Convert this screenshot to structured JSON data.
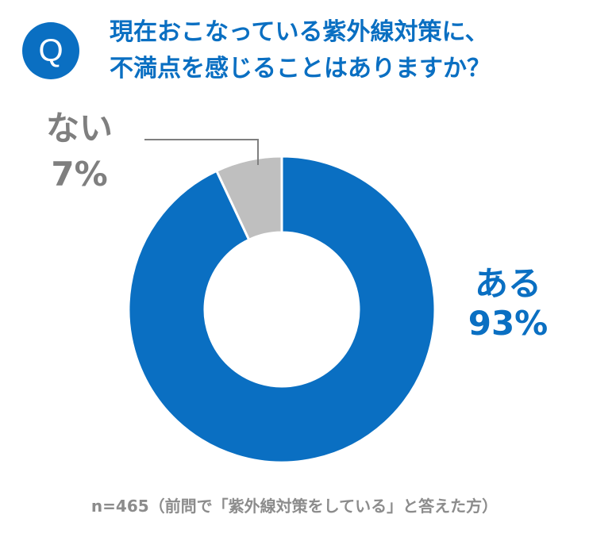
{
  "badge": "Q",
  "question": {
    "line1": "現在おこなっている紫外線対策に、",
    "line2": "不満点を感じることはありますか？"
  },
  "chart_data": {
    "type": "pie",
    "donut": true,
    "slices": [
      {
        "label": "ある",
        "value": 93,
        "display": "93%",
        "color": "#0a6fc2",
        "label_color": "#0a6fc2"
      },
      {
        "label": "ない",
        "value": 7,
        "display": "7%",
        "color": "#bfbfbf",
        "label_color": "#7f7f7f"
      }
    ]
  },
  "note": "n=465（前問で「紫外線対策をしている」と答えた方）"
}
